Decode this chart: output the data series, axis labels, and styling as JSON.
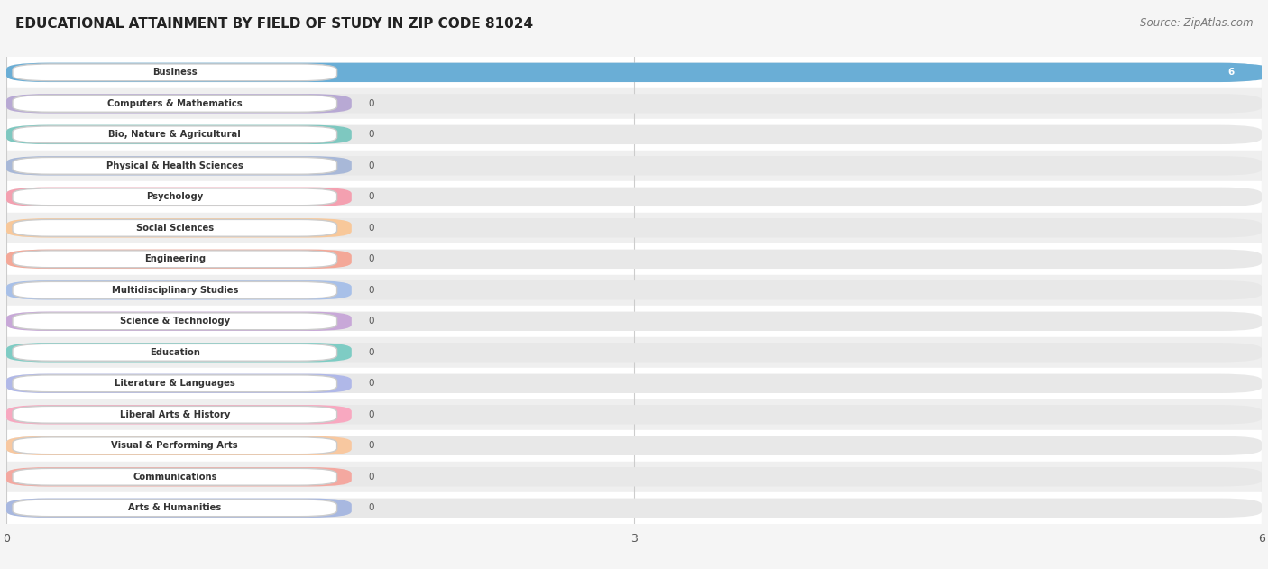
{
  "title": "EDUCATIONAL ATTAINMENT BY FIELD OF STUDY IN ZIP CODE 81024",
  "source": "Source: ZipAtlas.com",
  "categories": [
    "Business",
    "Computers & Mathematics",
    "Bio, Nature & Agricultural",
    "Physical & Health Sciences",
    "Psychology",
    "Social Sciences",
    "Engineering",
    "Multidisciplinary Studies",
    "Science & Technology",
    "Education",
    "Literature & Languages",
    "Liberal Arts & History",
    "Visual & Performing Arts",
    "Communications",
    "Arts & Humanities"
  ],
  "values": [
    6,
    0,
    0,
    0,
    0,
    0,
    0,
    0,
    0,
    0,
    0,
    0,
    0,
    0,
    0
  ],
  "bar_colors": [
    "#6aaed6",
    "#b8a9d4",
    "#7ec8c0",
    "#a8b8d8",
    "#f4a0b0",
    "#f8c89a",
    "#f4a898",
    "#a8c0e8",
    "#c8a8d8",
    "#7eccc4",
    "#b0b8e8",
    "#f8a8c0",
    "#f8c8a0",
    "#f4a8a0",
    "#a8b8e0"
  ],
  "xlim": [
    0,
    6
  ],
  "xticks": [
    0,
    3,
    6
  ],
  "background_color": "#f5f5f5",
  "row_colors": [
    "#ffffff",
    "#efefef"
  ],
  "title_fontsize": 11,
  "source_fontsize": 8.5
}
